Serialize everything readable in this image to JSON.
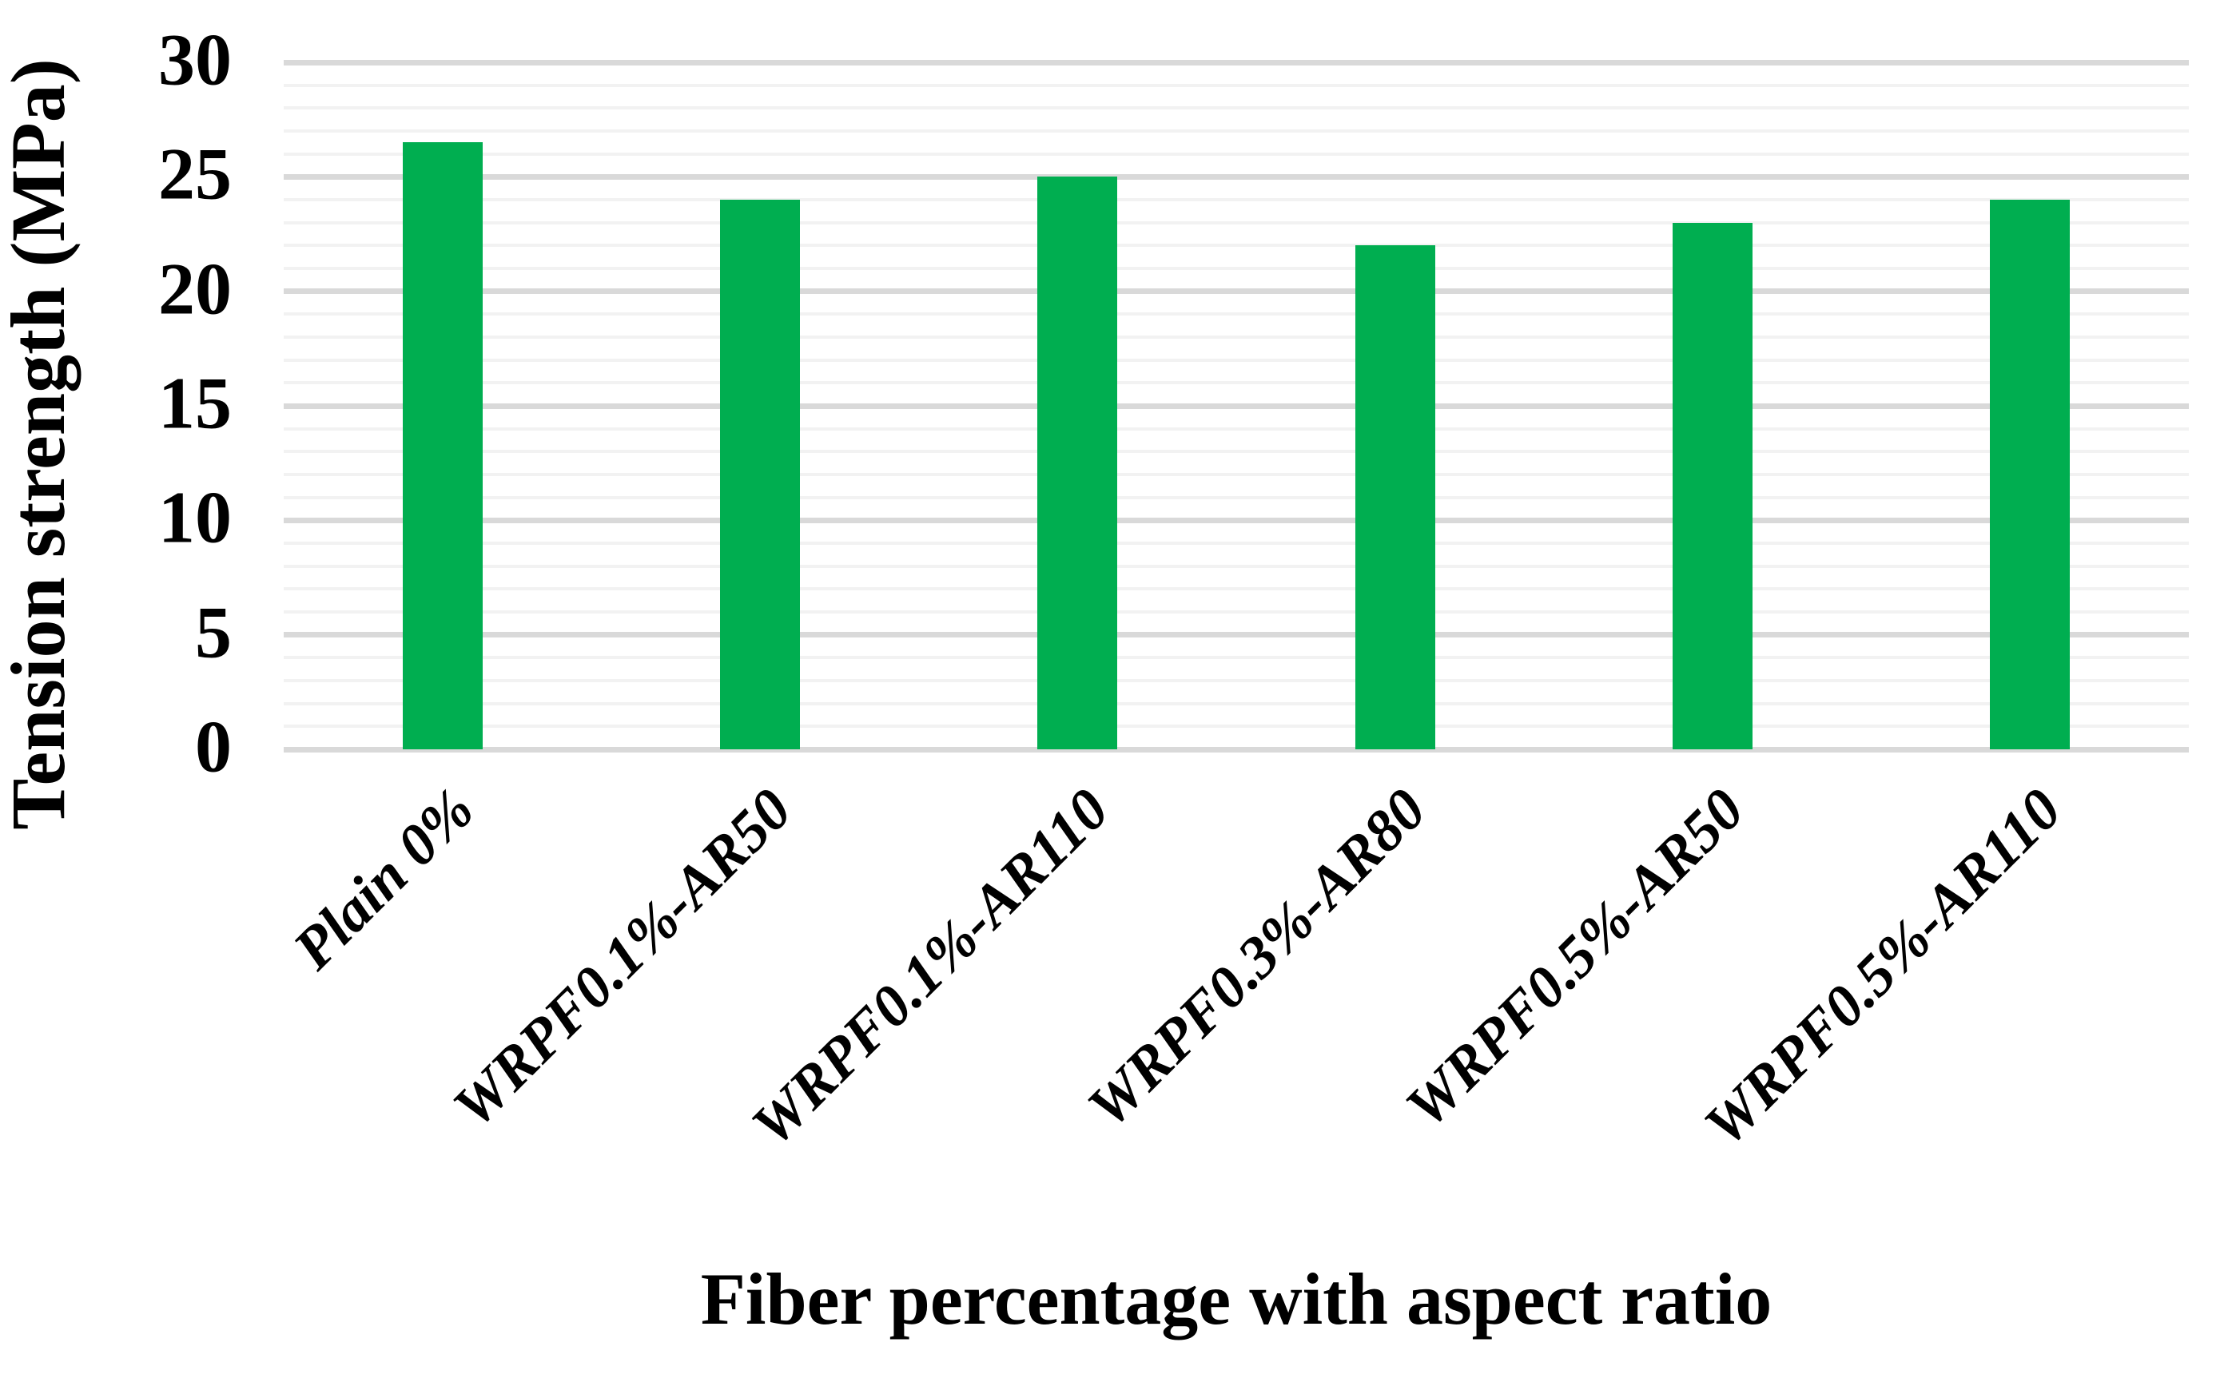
{
  "chart_data": {
    "type": "bar",
    "title": "",
    "categories": [
      "Plain 0%",
      "WRPF0.1%-AR50",
      "WRPF0.1%-AR110",
      "WRPF0.3%-AR80",
      "WRPF0.5%-AR50",
      "WRPF0.5%-AR110"
    ],
    "values": [
      26.5,
      24,
      25,
      22,
      23,
      24
    ],
    "xlabel": "Fiber percentage with aspect ratio",
    "ylabel": "Tension strength (MPa)",
    "ylim": [
      0,
      30
    ],
    "yticks": [
      0,
      5,
      10,
      15,
      20,
      25,
      30
    ],
    "grid": {
      "minor_step": 1,
      "major_step": 5,
      "minor_color": "#F2F2F2",
      "major_color": "#D9D9D9"
    },
    "bar_color": "#00AE50",
    "legend_position": "none"
  }
}
